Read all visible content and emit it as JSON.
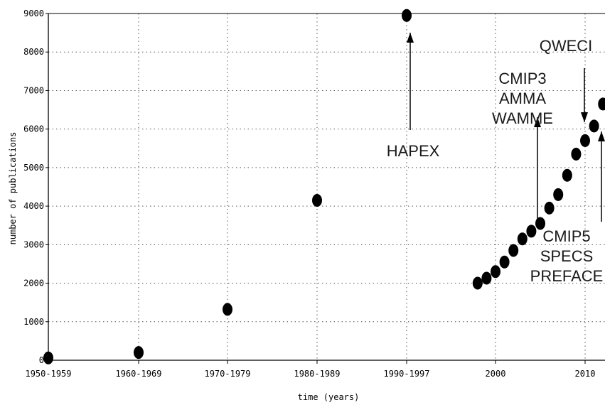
{
  "chart_data": {
    "type": "scatter",
    "title": "",
    "xlabel": "time (years)",
    "ylabel": "number of publications",
    "ylim": [
      0,
      9000
    ],
    "yticks": [
      0,
      1000,
      2000,
      3000,
      4000,
      5000,
      6000,
      7000,
      8000,
      9000
    ],
    "xtick_labels": [
      "1950-1959",
      "1960-1969",
      "1970-1979",
      "1980-1989",
      "1990-1997",
      "2000",
      "2010"
    ],
    "grid": true,
    "points": [
      {
        "x": "1950-1959",
        "y": 60
      },
      {
        "x": "1960-1969",
        "y": 200
      },
      {
        "x": "1970-1979",
        "y": 1320
      },
      {
        "x": "1980-1989",
        "y": 4150
      },
      {
        "x": "1990-1997",
        "y": 8950
      },
      {
        "x": 1998,
        "y": 2000
      },
      {
        "x": 1999,
        "y": 2130
      },
      {
        "x": 2000,
        "y": 2300
      },
      {
        "x": 2001,
        "y": 2550
      },
      {
        "x": 2002,
        "y": 2850
      },
      {
        "x": 2003,
        "y": 3150
      },
      {
        "x": 2004,
        "y": 3350
      },
      {
        "x": 2005,
        "y": 3550
      },
      {
        "x": 2006,
        "y": 3950
      },
      {
        "x": 2007,
        "y": 4300
      },
      {
        "x": 2008,
        "y": 4800
      },
      {
        "x": 2009,
        "y": 5350
      },
      {
        "x": 2010,
        "y": 5700
      },
      {
        "x": 2011,
        "y": 6080
      },
      {
        "x": 2012,
        "y": 6650
      }
    ],
    "annotations": [
      {
        "id": "hapex",
        "lines": [
          "HAPEX"
        ],
        "x": "1990-1997",
        "y": 8950,
        "arrow": "up"
      },
      {
        "id": "cmip3",
        "lines": [
          "CMIP3",
          "AMMA",
          "WAMME"
        ],
        "x": 2005,
        "y": 3550,
        "arrow": "up"
      },
      {
        "id": "qweci",
        "lines": [
          "QWECI"
        ],
        "x": 2010,
        "y": 5700,
        "arrow": "down"
      },
      {
        "id": "cmip5",
        "lines": [
          "CMIP5",
          "SPECS",
          "PREFACE"
        ],
        "x": 2012,
        "y": 6650,
        "arrow": "up"
      }
    ]
  }
}
